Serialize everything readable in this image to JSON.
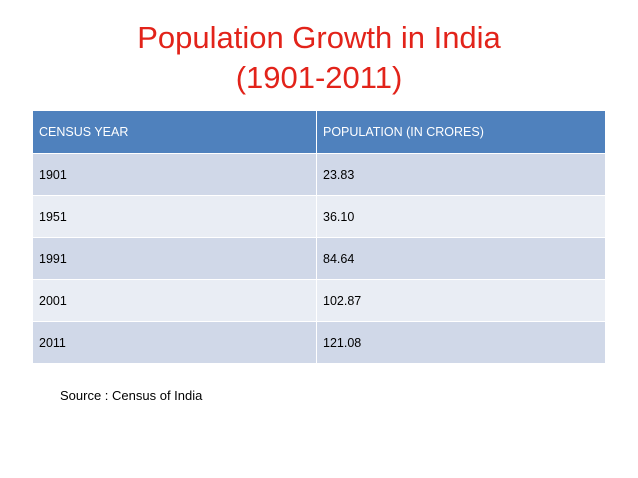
{
  "slide": {
    "title_line1": "Population Growth in India",
    "title_line2": "(1901-2011)",
    "source": "Source : Census of India"
  },
  "table": {
    "headers": [
      "CENSUS YEAR",
      "POPULATION (IN CRORES)"
    ],
    "rows": [
      [
        "1901",
        "23.83"
      ],
      [
        "1951",
        "36.10"
      ],
      [
        "1991",
        "84.64"
      ],
      [
        "2001",
        "102.87"
      ],
      [
        "2011",
        "121.08"
      ]
    ]
  },
  "colors": {
    "title": "#e2231a",
    "header_bg": "#4f81bd",
    "row_odd_bg": "#d0d8e8",
    "row_even_bg": "#e9edf4"
  }
}
